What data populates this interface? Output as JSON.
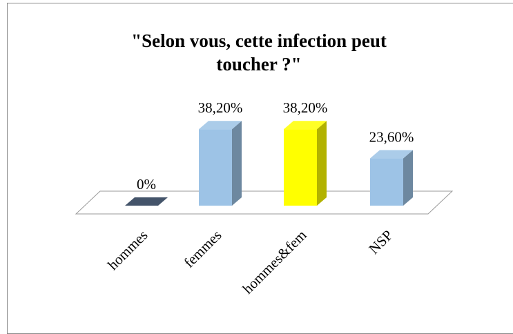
{
  "chart_data": {
    "type": "bar",
    "title": "\"Selon vous, cette infection peut toucher ?\"",
    "categories": [
      "hommes",
      "femmes",
      "hommes&fem",
      "NSP"
    ],
    "values": [
      0,
      38.2,
      38.2,
      23.6
    ],
    "value_labels": [
      "0%",
      "38,20%",
      "38,20%",
      "23,60%"
    ],
    "colors": [
      "#44546a",
      "#9dc3e6",
      "#ffff00",
      "#9dc3e6"
    ]
  }
}
